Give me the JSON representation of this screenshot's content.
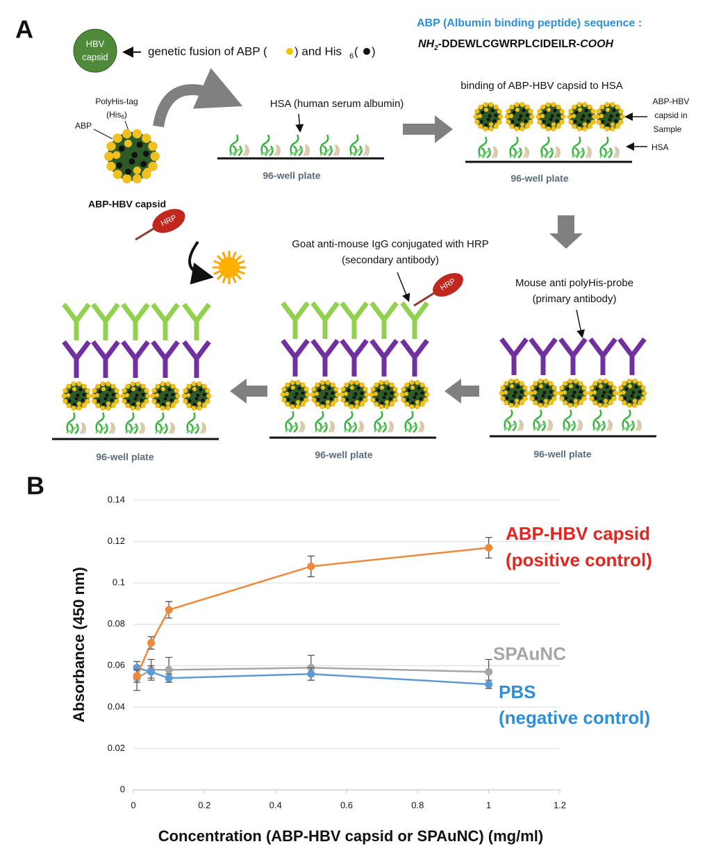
{
  "figure": {
    "panel_a": {
      "label": "A",
      "hbv_capsid": [
        "HBV",
        "capsid"
      ],
      "fusion": {
        "part1": "genetic fusion of ABP (",
        "part2": ") and His",
        "subscript": "6",
        "part3": " (",
        "part4": ")"
      },
      "sequence_title": "ABP (Albumin binding peptide) sequence :",
      "sequence": {
        "start": "NH",
        "start_sub": "2",
        "peptide": "-DDEWLCGWRPLCIDEILR-",
        "end": "COOH"
      },
      "polyhis_tag": "PolyHis-tag",
      "his": {
        "open": "(His",
        "sub": "6",
        "close": ")"
      },
      "abp": "ABP",
      "capsid_label": "ABP-HBV capsid",
      "hsa_label": "HSA (human serum albumin)",
      "binding_label": "binding of ABP-HBV capsid to HSA",
      "sample_label": [
        "ABP-HBV",
        "capsid in",
        "Sample"
      ],
      "hsa_short": "HSA",
      "primary": [
        "Mouse anti polyHis-probe",
        "(primary antibody)"
      ],
      "secondary": [
        "Goat anti-mouse IgG conjugated with HRP",
        "(secondary antibody)"
      ],
      "hrp": [
        "HRP",
        "HRP"
      ],
      "plates": [
        "96-well plate",
        "96-well plate",
        "96-well plate",
        "96-well plate",
        "96-well plate"
      ]
    },
    "panel_b_label": "B"
  },
  "chart_data": {
    "type": "line",
    "x_label": "Concentration (ABP-HBV capsid or SPAuNC) (mg/ml)",
    "y_label": "Absorbance (450 nm)",
    "x": [
      0.01,
      0.05,
      0.1,
      0.5,
      1
    ],
    "xlim": [
      0,
      1.2
    ],
    "xticks": [
      0,
      0.2,
      0.4,
      0.6,
      0.8,
      1,
      1.2
    ],
    "ylim": [
      0,
      0.14
    ],
    "yticks": [
      0,
      0.02,
      0.04,
      0.06,
      0.08,
      0.1,
      0.12,
      0.14
    ],
    "grid": true,
    "series": [
      {
        "name": "ABP-HBV capsid",
        "subname": "(positive control)",
        "color": "#f0883a",
        "label_color": "#e3261f",
        "values": [
          0.055,
          0.071,
          0.087,
          0.108,
          0.117
        ],
        "errors": [
          0.003,
          0.003,
          0.004,
          0.005,
          0.005
        ]
      },
      {
        "name": "SPAuNC",
        "color": "#a6a6a6",
        "label_color": "#a6a6a6",
        "values": [
          0.054,
          0.058,
          0.058,
          0.059,
          0.057
        ],
        "errors": [
          0.006,
          0.005,
          0.006,
          0.006,
          0.006
        ]
      },
      {
        "name": "PBS",
        "subname": "(negative control)",
        "color": "#5b9bd5",
        "label_color": "#2e8fd8",
        "values": [
          0.059,
          0.057,
          0.054,
          0.056,
          0.051
        ],
        "errors": [
          0.003,
          0.003,
          0.002,
          0.003,
          0.002
        ]
      }
    ]
  }
}
